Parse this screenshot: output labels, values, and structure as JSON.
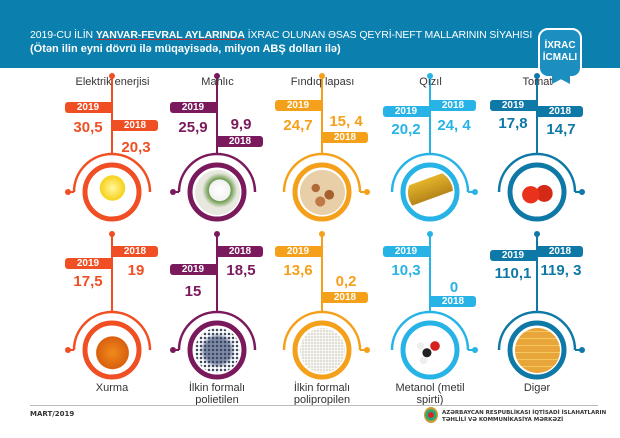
{
  "header": {
    "title_prefix": "2019-CU İLİN ",
    "title_highlight": "YANVAR-FEVRAL AYLARINDA",
    "title_suffix": " İXRAC OLUNAN ƏSAS QEYRİ-NEFT MALLARININ SİYAHISI",
    "subtitle": "(Ötən ilin eyni dövrü ilə müqayisədə, milyon ABŞ dolları ilə)",
    "badge_line1": "İXRAC",
    "badge_line2": "İCMALI"
  },
  "colors": {
    "red": "#f04e23",
    "purple": "#7a1a5c",
    "amber": "#f5a01a",
    "light_blue": "#27b3e6",
    "dark_blue": "#0e78a6",
    "header": "#0b7fae"
  },
  "items": [
    {
      "name": "Elektrik enerjisi",
      "y2019_label": "2019",
      "v2019": "30,5",
      "y2018_label": "2018",
      "v2018": "20,3",
      "icon": "light-bulb"
    },
    {
      "name": "Mahlıc",
      "y2019_label": "2019",
      "v2019": "25,9",
      "y2018_label": "2018",
      "v2018": "9,9",
      "icon": "cotton"
    },
    {
      "name": "Fındıq lapası",
      "y2019_label": "2019",
      "v2019": "24,7",
      "y2018_label": "2018",
      "v2018": "15, 4",
      "icon": "hazelnuts"
    },
    {
      "name": "Qızıl",
      "y2019_label": "2019",
      "v2019": "20,2",
      "y2018_label": "2018",
      "v2018": "24, 4",
      "icon": "gold-bars"
    },
    {
      "name": "Tomat",
      "y2019_label": "2019",
      "v2019": "17,8",
      "y2018_label": "2018",
      "v2018": "14,7",
      "icon": "tomato"
    },
    {
      "name": "Xurma",
      "y2019_label": "2019",
      "v2019": "17,5",
      "y2018_label": "2018",
      "v2018": "19",
      "icon": "persimmon"
    },
    {
      "name": "İlkin formalı polietilen",
      "y2019_label": "2019",
      "v2019": "15",
      "y2018_label": "2018",
      "v2018": "18,5",
      "icon": "polyethylene-pellets"
    },
    {
      "name": "İlkin formalı polipropilen",
      "y2019_label": "2019",
      "v2019": "13,6",
      "y2018_label": "2018",
      "v2018": "0,2",
      "icon": "polypropylene-pellets"
    },
    {
      "name": "Metanol (metil spirti)",
      "y2019_label": "2019",
      "v2019": "10,3",
      "y2018_label": "2018",
      "v2018": "0",
      "icon": "methanol-molecule"
    },
    {
      "name": "Digər",
      "y2019_label": "2019",
      "v2019": "110,1",
      "y2018_label": "2018",
      "v2018": "119, 3",
      "icon": "containers"
    }
  ],
  "footer": {
    "date": "MART/2019",
    "org_line1": "AZƏRBAYCAN RESPUBLİKASI İQTİSADİ İSLAHATLARIN",
    "org_line2": "TƏHLİLİ VƏ KOMMUNİKASİYA MƏRKƏZİ"
  }
}
